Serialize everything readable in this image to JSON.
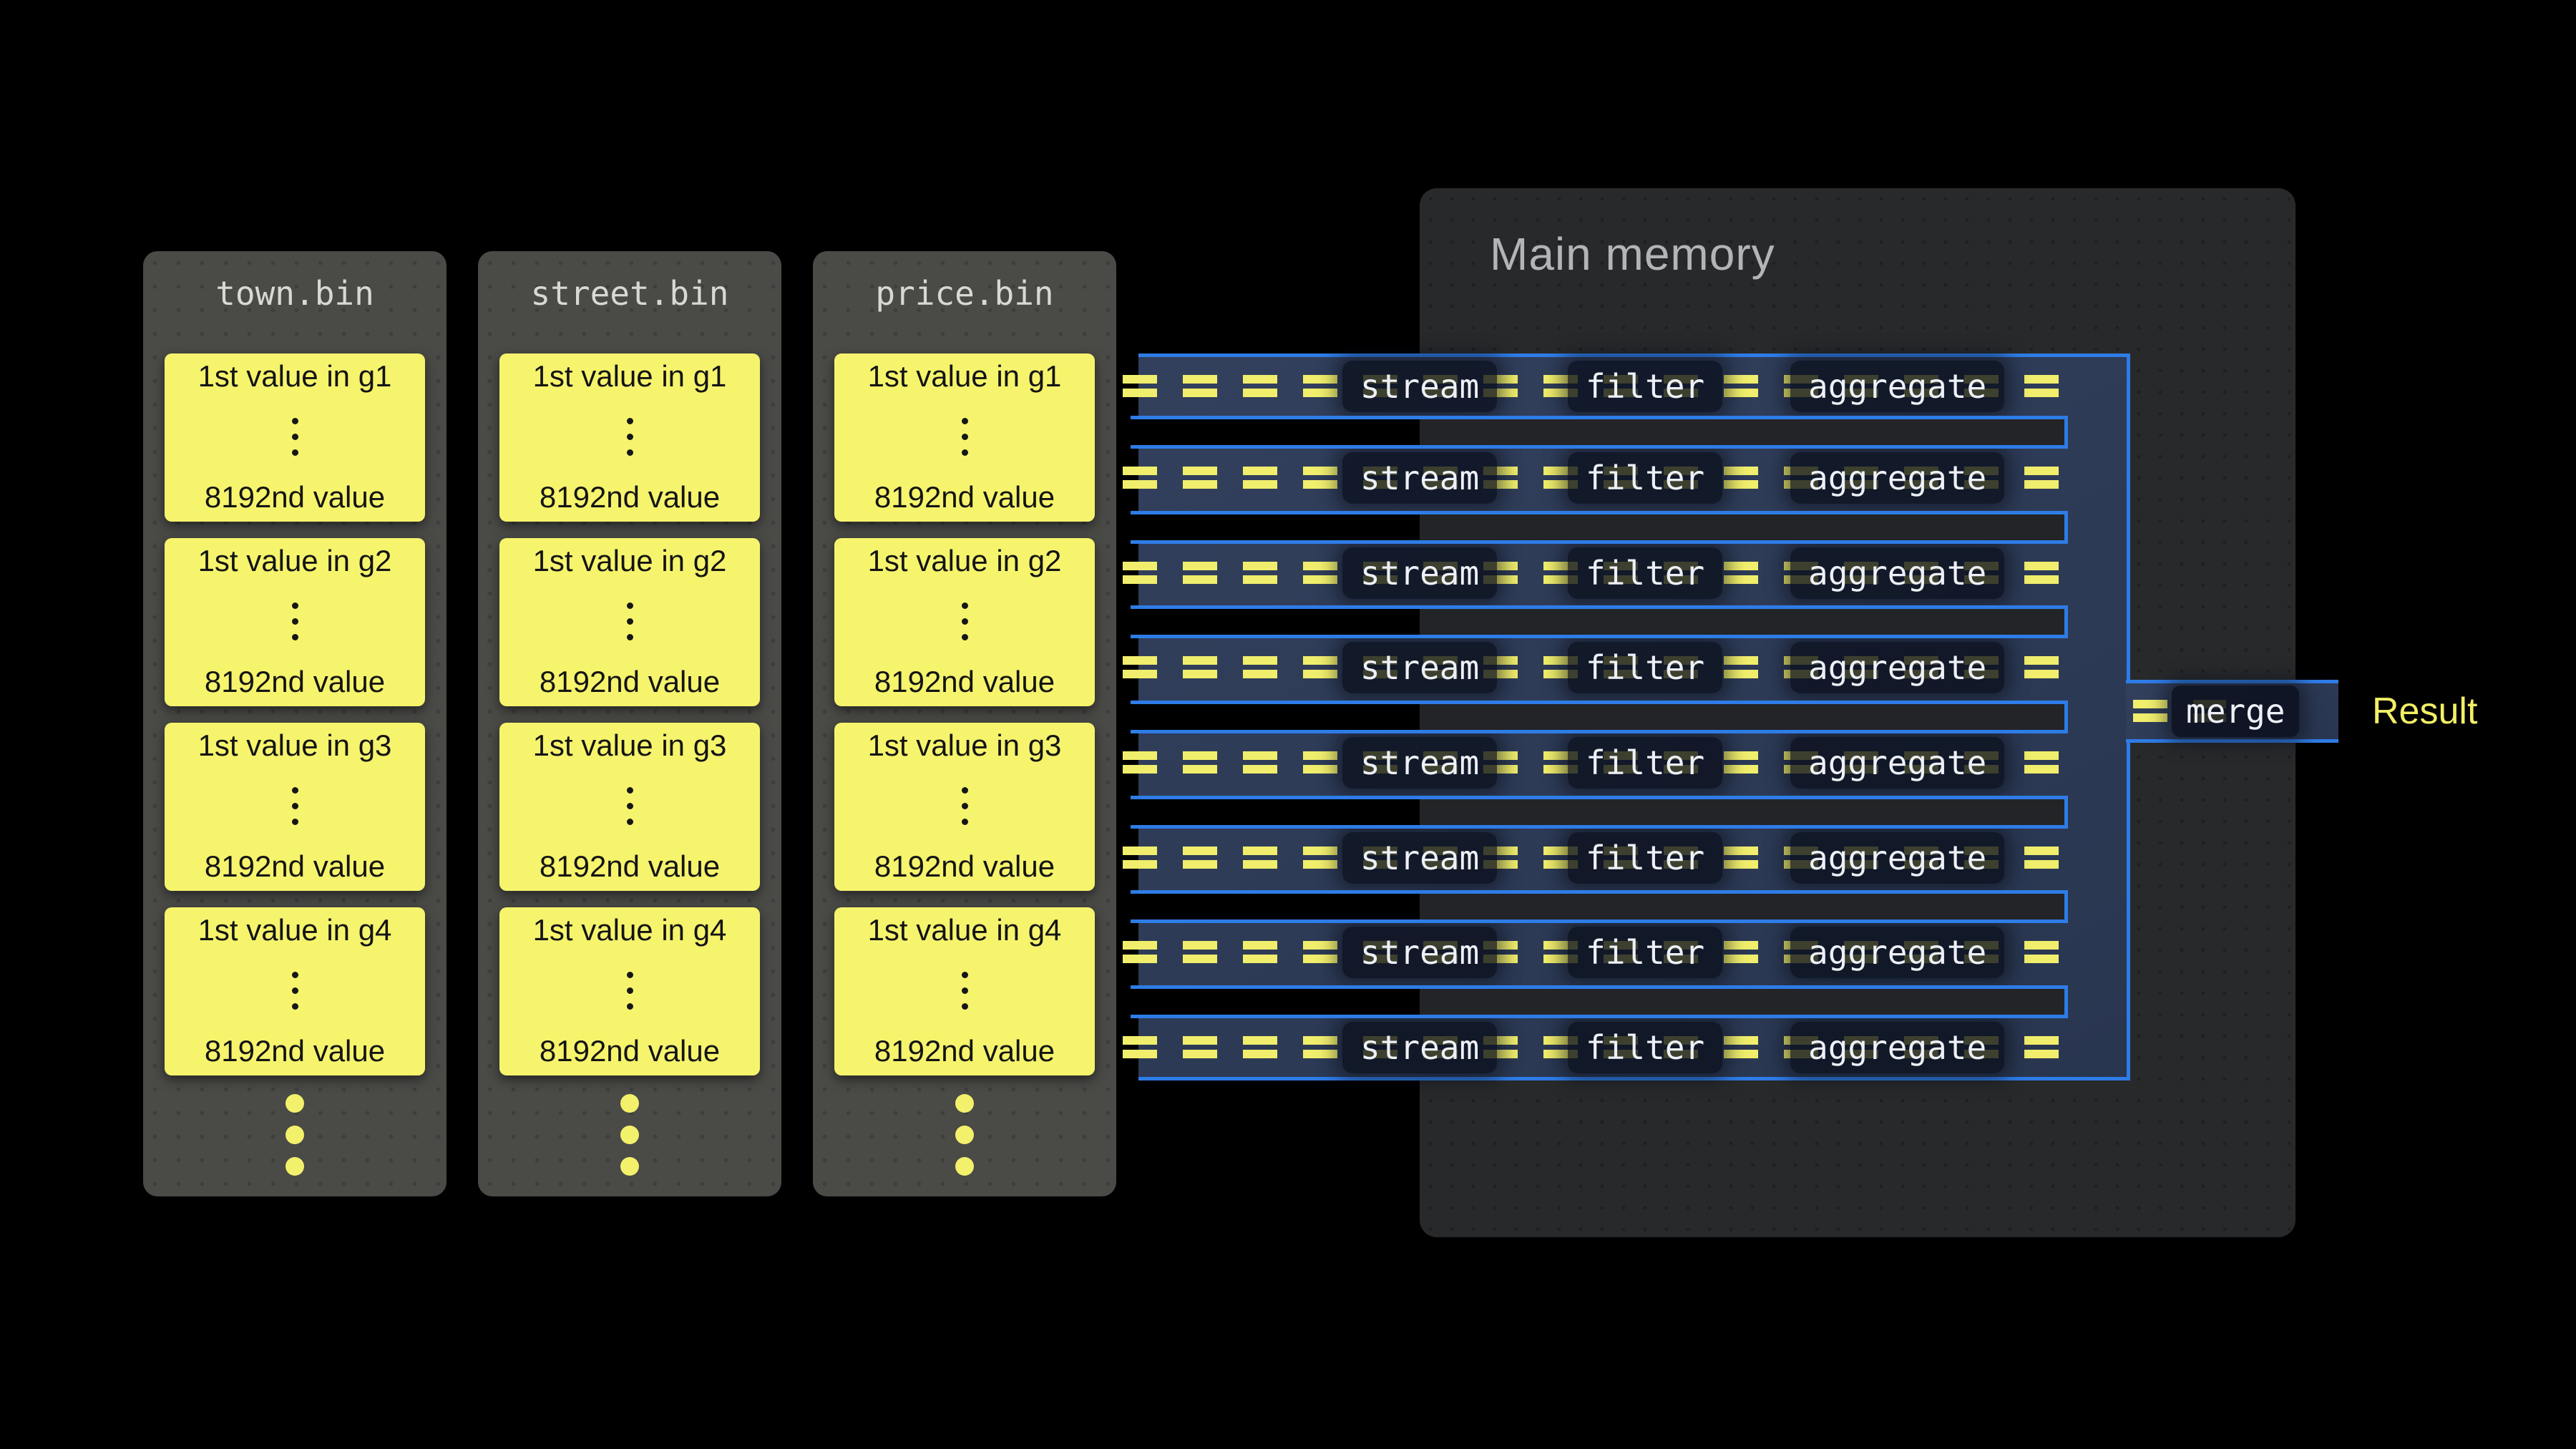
{
  "files": [
    {
      "name": "town.bin",
      "groups": [
        {
          "first": "1st value in g1",
          "last": "8192nd value"
        },
        {
          "first": "1st value in g2",
          "last": "8192nd value"
        },
        {
          "first": "1st value in g3",
          "last": "8192nd value"
        },
        {
          "first": "1st value in g4",
          "last": "8192nd value"
        }
      ]
    },
    {
      "name": "street.bin",
      "groups": [
        {
          "first": "1st value in g1",
          "last": "8192nd value"
        },
        {
          "first": "1st value in g2",
          "last": "8192nd value"
        },
        {
          "first": "1st value in g3",
          "last": "8192nd value"
        },
        {
          "first": "1st value in g4",
          "last": "8192nd value"
        }
      ]
    },
    {
      "name": "price.bin",
      "groups": [
        {
          "first": "1st value in g1",
          "last": "8192nd value"
        },
        {
          "first": "1st value in g2",
          "last": "8192nd value"
        },
        {
          "first": "1st value in g3",
          "last": "8192nd value"
        },
        {
          "first": "1st value in g4",
          "last": "8192nd value"
        }
      ]
    }
  ],
  "memory": {
    "title": "Main memory"
  },
  "pipeline": {
    "lane_count": 8,
    "stages": [
      "stream",
      "filter",
      "aggregate"
    ]
  },
  "merge": {
    "label": "merge"
  },
  "result": {
    "label": "Result"
  },
  "colors": {
    "background": "#000000",
    "card_bg": "#4a4a47",
    "card_title": "#d8d8d5",
    "group_box": "#f6f46d",
    "pipe_fill": "#2d3a55",
    "pipe_border": "#2e7ce6",
    "dash_yellow": "#f0ee6c",
    "chip_bg": "#0a0f1c",
    "chip_text": "#edf0f6",
    "memory_bg": "#28292b",
    "memory_title": "#b2b4b7",
    "result_text": "#f3ef67"
  }
}
